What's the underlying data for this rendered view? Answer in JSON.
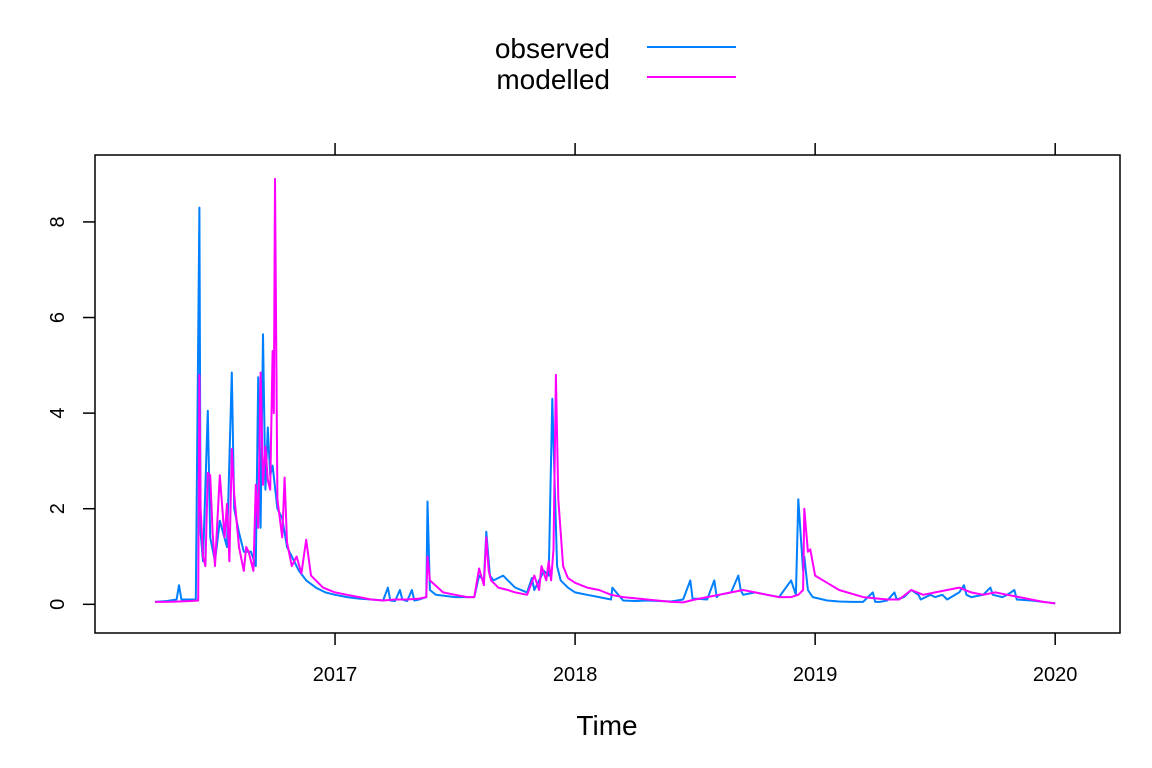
{
  "chart_data": {
    "type": "line",
    "xlabel": "Time",
    "ylabel": "",
    "xlim": [
      2016.0,
      2020.27
    ],
    "ylim": [
      -0.6,
      9.4
    ],
    "x_ticks": [
      2017,
      2018,
      2019,
      2020
    ],
    "x_tick_labels": [
      "2017",
      "2018",
      "2019",
      "2020"
    ],
    "y_ticks": [
      0,
      2,
      4,
      6,
      8
    ],
    "y_tick_labels": [
      "0",
      "2",
      "4",
      "6",
      "8"
    ],
    "grid": false,
    "legend_position": "top-center",
    "series": [
      {
        "name": "observed",
        "color": "#0080ff",
        "x": [
          2016.25,
          2016.3,
          2016.34,
          2016.35,
          2016.36,
          2016.38,
          2016.42,
          2016.435,
          2016.44,
          2016.45,
          2016.47,
          2016.48,
          2016.5,
          2016.52,
          2016.55,
          2016.57,
          2016.58,
          2016.6,
          2016.62,
          2016.65,
          2016.67,
          2016.68,
          2016.69,
          2016.7,
          2016.71,
          2016.72,
          2016.73,
          2016.74,
          2016.76,
          2016.78,
          2016.8,
          2016.82,
          2016.85,
          2016.88,
          2016.92,
          2016.96,
          2017.0,
          2017.05,
          2017.1,
          2017.15,
          2017.2,
          2017.22,
          2017.23,
          2017.25,
          2017.27,
          2017.28,
          2017.3,
          2017.32,
          2017.33,
          2017.35,
          2017.38,
          2017.385,
          2017.395,
          2017.42,
          2017.5,
          2017.58,
          2017.6,
          2017.62,
          2017.63,
          2017.645,
          2017.66,
          2017.7,
          2017.72,
          2017.75,
          2017.8,
          2017.82,
          2017.83,
          2017.85,
          2017.87,
          2017.89,
          2017.905,
          2017.915,
          2017.925,
          2017.94,
          2017.97,
          2018.0,
          2018.05,
          2018.1,
          2018.15,
          2018.155,
          2018.2,
          2018.25,
          2018.3,
          2018.35,
          2018.4,
          2018.45,
          2018.48,
          2018.49,
          2018.5,
          2018.55,
          2018.58,
          2018.59,
          2018.6,
          2018.65,
          2018.68,
          2018.69,
          2018.7,
          2018.75,
          2018.8,
          2018.85,
          2018.9,
          2018.92,
          2018.93,
          2018.95,
          2018.955,
          2018.97,
          2018.99,
          2019.05,
          2019.1,
          2019.15,
          2019.2,
          2019.24,
          2019.25,
          2019.27,
          2019.3,
          2019.33,
          2019.34,
          2019.37,
          2019.4,
          2019.43,
          2019.44,
          2019.48,
          2019.5,
          2019.53,
          2019.55,
          2019.6,
          2019.62,
          2019.63,
          2019.65,
          2019.7,
          2019.73,
          2019.74,
          2019.78,
          2019.8,
          2019.83,
          2019.84,
          2019.9,
          2019.95,
          2020.0
        ],
        "y": [
          0.05,
          0.07,
          0.1,
          0.4,
          0.1,
          0.1,
          0.1,
          8.3,
          1.5,
          0.9,
          4.05,
          1.4,
          0.9,
          1.75,
          1.2,
          4.85,
          2.0,
          1.5,
          1.1,
          1.1,
          0.8,
          4.75,
          1.6,
          5.65,
          2.4,
          3.7,
          2.7,
          2.9,
          2.0,
          1.8,
          1.2,
          1.0,
          0.7,
          0.5,
          0.35,
          0.25,
          0.2,
          0.15,
          0.12,
          0.1,
          0.08,
          0.35,
          0.08,
          0.07,
          0.3,
          0.1,
          0.07,
          0.3,
          0.08,
          0.1,
          0.15,
          2.15,
          0.3,
          0.2,
          0.15,
          0.15,
          0.6,
          0.5,
          1.52,
          0.6,
          0.5,
          0.6,
          0.5,
          0.35,
          0.25,
          0.55,
          0.3,
          0.5,
          0.7,
          0.6,
          4.3,
          2.5,
          0.8,
          0.5,
          0.35,
          0.25,
          0.2,
          0.15,
          0.1,
          0.35,
          0.08,
          0.07,
          0.08,
          0.07,
          0.06,
          0.1,
          0.5,
          0.1,
          0.12,
          0.1,
          0.5,
          0.15,
          0.2,
          0.25,
          0.6,
          0.3,
          0.2,
          0.25,
          0.2,
          0.15,
          0.5,
          0.2,
          2.2,
          0.7,
          1.0,
          0.3,
          0.15,
          0.08,
          0.06,
          0.05,
          0.05,
          0.25,
          0.05,
          0.05,
          0.08,
          0.25,
          0.1,
          0.15,
          0.3,
          0.2,
          0.1,
          0.2,
          0.15,
          0.2,
          0.1,
          0.25,
          0.4,
          0.2,
          0.15,
          0.2,
          0.35,
          0.2,
          0.15,
          0.2,
          0.3,
          0.1,
          0.08,
          0.05,
          0.02
        ]
      },
      {
        "name": "modelled",
        "color": "#ff00ff",
        "x": [
          2016.25,
          2016.3,
          2016.35,
          2016.4,
          2016.43,
          2016.435,
          2016.44,
          2016.45,
          2016.46,
          2016.47,
          2016.48,
          2016.49,
          2016.5,
          2016.52,
          2016.54,
          2016.55,
          2016.56,
          2016.57,
          2016.58,
          2016.6,
          2016.62,
          2016.63,
          2016.64,
          2016.66,
          2016.67,
          2016.68,
          2016.69,
          2016.7,
          2016.71,
          2016.72,
          2016.73,
          2016.74,
          2016.745,
          2016.75,
          2016.76,
          2016.78,
          2016.79,
          2016.8,
          2016.82,
          2016.84,
          2016.86,
          2016.88,
          2016.9,
          2016.95,
          2017.0,
          2017.05,
          2017.1,
          2017.15,
          2017.2,
          2017.25,
          2017.3,
          2017.35,
          2017.38,
          2017.385,
          2017.395,
          2017.45,
          2017.5,
          2017.55,
          2017.58,
          2017.6,
          2017.62,
          2017.63,
          2017.64,
          2017.65,
          2017.68,
          2017.72,
          2017.75,
          2017.8,
          2017.83,
          2017.85,
          2017.86,
          2017.88,
          2017.89,
          2017.9,
          2017.91,
          2017.92,
          2017.93,
          2017.95,
          2017.97,
          2018.0,
          2018.05,
          2018.1,
          2018.15,
          2018.2,
          2018.3,
          2018.4,
          2018.45,
          2018.5,
          2018.55,
          2018.6,
          2018.65,
          2018.7,
          2018.75,
          2018.8,
          2018.85,
          2018.9,
          2018.93,
          2018.95,
          2018.955,
          2018.97,
          2018.98,
          2019.0,
          2019.05,
          2019.1,
          2019.2,
          2019.3,
          2019.35,
          2019.4,
          2019.45,
          2019.5,
          2019.55,
          2019.6,
          2019.65,
          2019.7,
          2019.75,
          2019.8,
          2019.85,
          2019.9,
          2019.95,
          2020.0
        ],
        "y": [
          0.05,
          0.05,
          0.06,
          0.07,
          0.08,
          4.8,
          2.0,
          1.0,
          0.8,
          2.75,
          2.7,
          1.5,
          0.8,
          2.7,
          1.4,
          2.1,
          0.9,
          3.25,
          2.3,
          1.2,
          0.7,
          1.2,
          1.1,
          0.7,
          2.5,
          1.6,
          4.85,
          2.5,
          3.3,
          2.6,
          2.4,
          5.3,
          4.0,
          8.9,
          2.2,
          1.4,
          2.65,
          1.3,
          0.8,
          1.0,
          0.65,
          1.35,
          0.6,
          0.35,
          0.25,
          0.2,
          0.15,
          0.1,
          0.08,
          0.1,
          0.1,
          0.12,
          0.15,
          1.0,
          0.5,
          0.25,
          0.2,
          0.15,
          0.15,
          0.75,
          0.4,
          1.4,
          0.7,
          0.5,
          0.35,
          0.3,
          0.25,
          0.2,
          0.6,
          0.3,
          0.8,
          0.5,
          0.9,
          0.5,
          1.15,
          4.8,
          2.2,
          0.8,
          0.55,
          0.45,
          0.35,
          0.3,
          0.2,
          0.15,
          0.1,
          0.05,
          0.04,
          0.1,
          0.15,
          0.2,
          0.25,
          0.3,
          0.25,
          0.2,
          0.15,
          0.15,
          0.2,
          0.3,
          2.0,
          1.1,
          1.15,
          0.6,
          0.45,
          0.3,
          0.15,
          0.1,
          0.1,
          0.3,
          0.2,
          0.25,
          0.3,
          0.35,
          0.25,
          0.2,
          0.25,
          0.2,
          0.15,
          0.1,
          0.05,
          0.02
        ]
      }
    ]
  }
}
